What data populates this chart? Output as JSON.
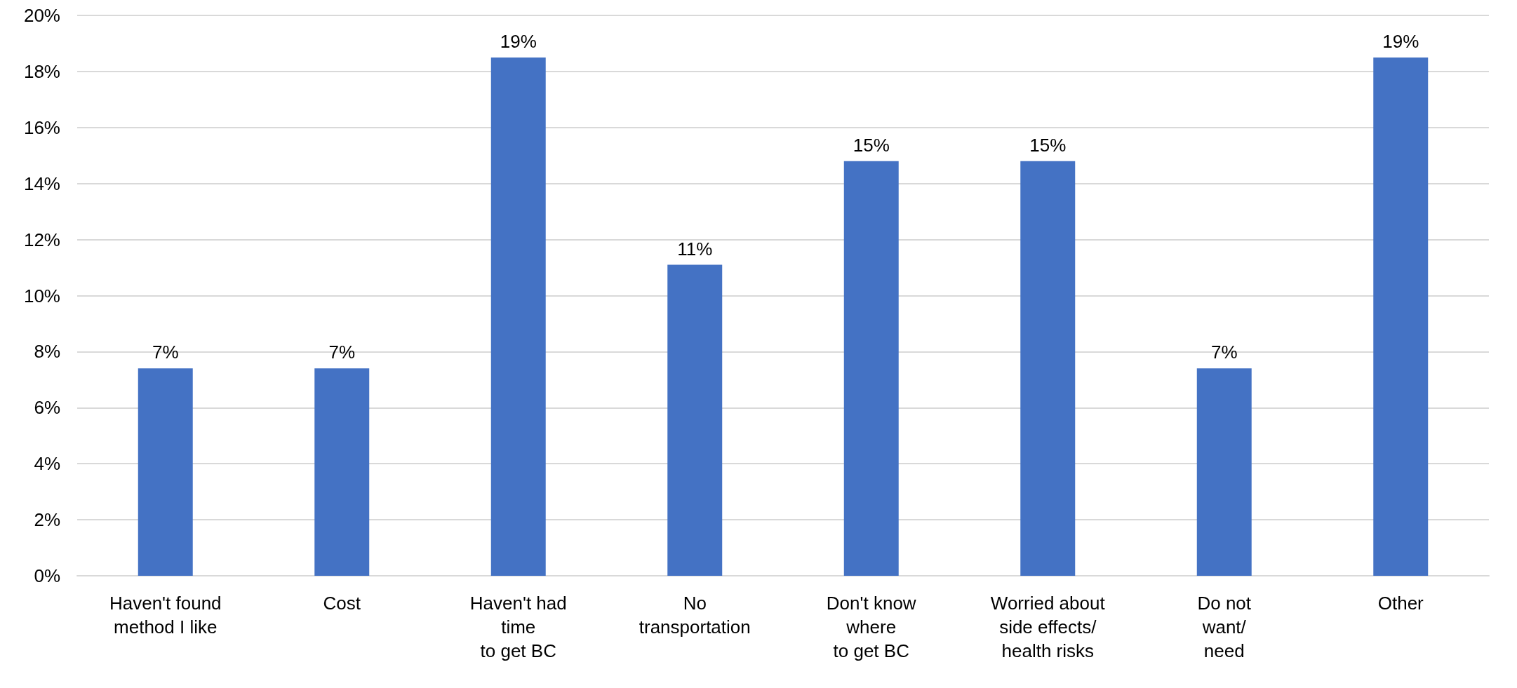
{
  "chart_data": {
    "type": "bar",
    "categories": [
      "Haven't found\nmethod I like",
      "Cost",
      "Haven't had\ntime\nto get BC",
      "No\ntransportation",
      "Don't know\nwhere\nto get BC",
      "Worried about\nside effects/\nhealth risks",
      "Do not\nwant/\nneed",
      "Other"
    ],
    "values": [
      7.4,
      7.4,
      18.5,
      11.1,
      14.8,
      14.8,
      7.4,
      18.5
    ],
    "value_labels": [
      "7%",
      "7%",
      "19%",
      "11%",
      "15%",
      "15%",
      "7%",
      "19%"
    ],
    "color": "#4472c4",
    "ylim": [
      0,
      20
    ],
    "yticks": [
      {
        "value": 0,
        "label": "0%"
      },
      {
        "value": 2,
        "label": "2%"
      },
      {
        "value": 4,
        "label": "4%"
      },
      {
        "value": 6,
        "label": "6%"
      },
      {
        "value": 8,
        "label": "8%"
      },
      {
        "value": 10,
        "label": "10%"
      },
      {
        "value": 12,
        "label": "12%"
      },
      {
        "value": 14,
        "label": "14%"
      },
      {
        "value": 16,
        "label": "16%"
      },
      {
        "value": 18,
        "label": "18%"
      },
      {
        "value": 20,
        "label": "20%"
      }
    ],
    "grid": "y"
  }
}
